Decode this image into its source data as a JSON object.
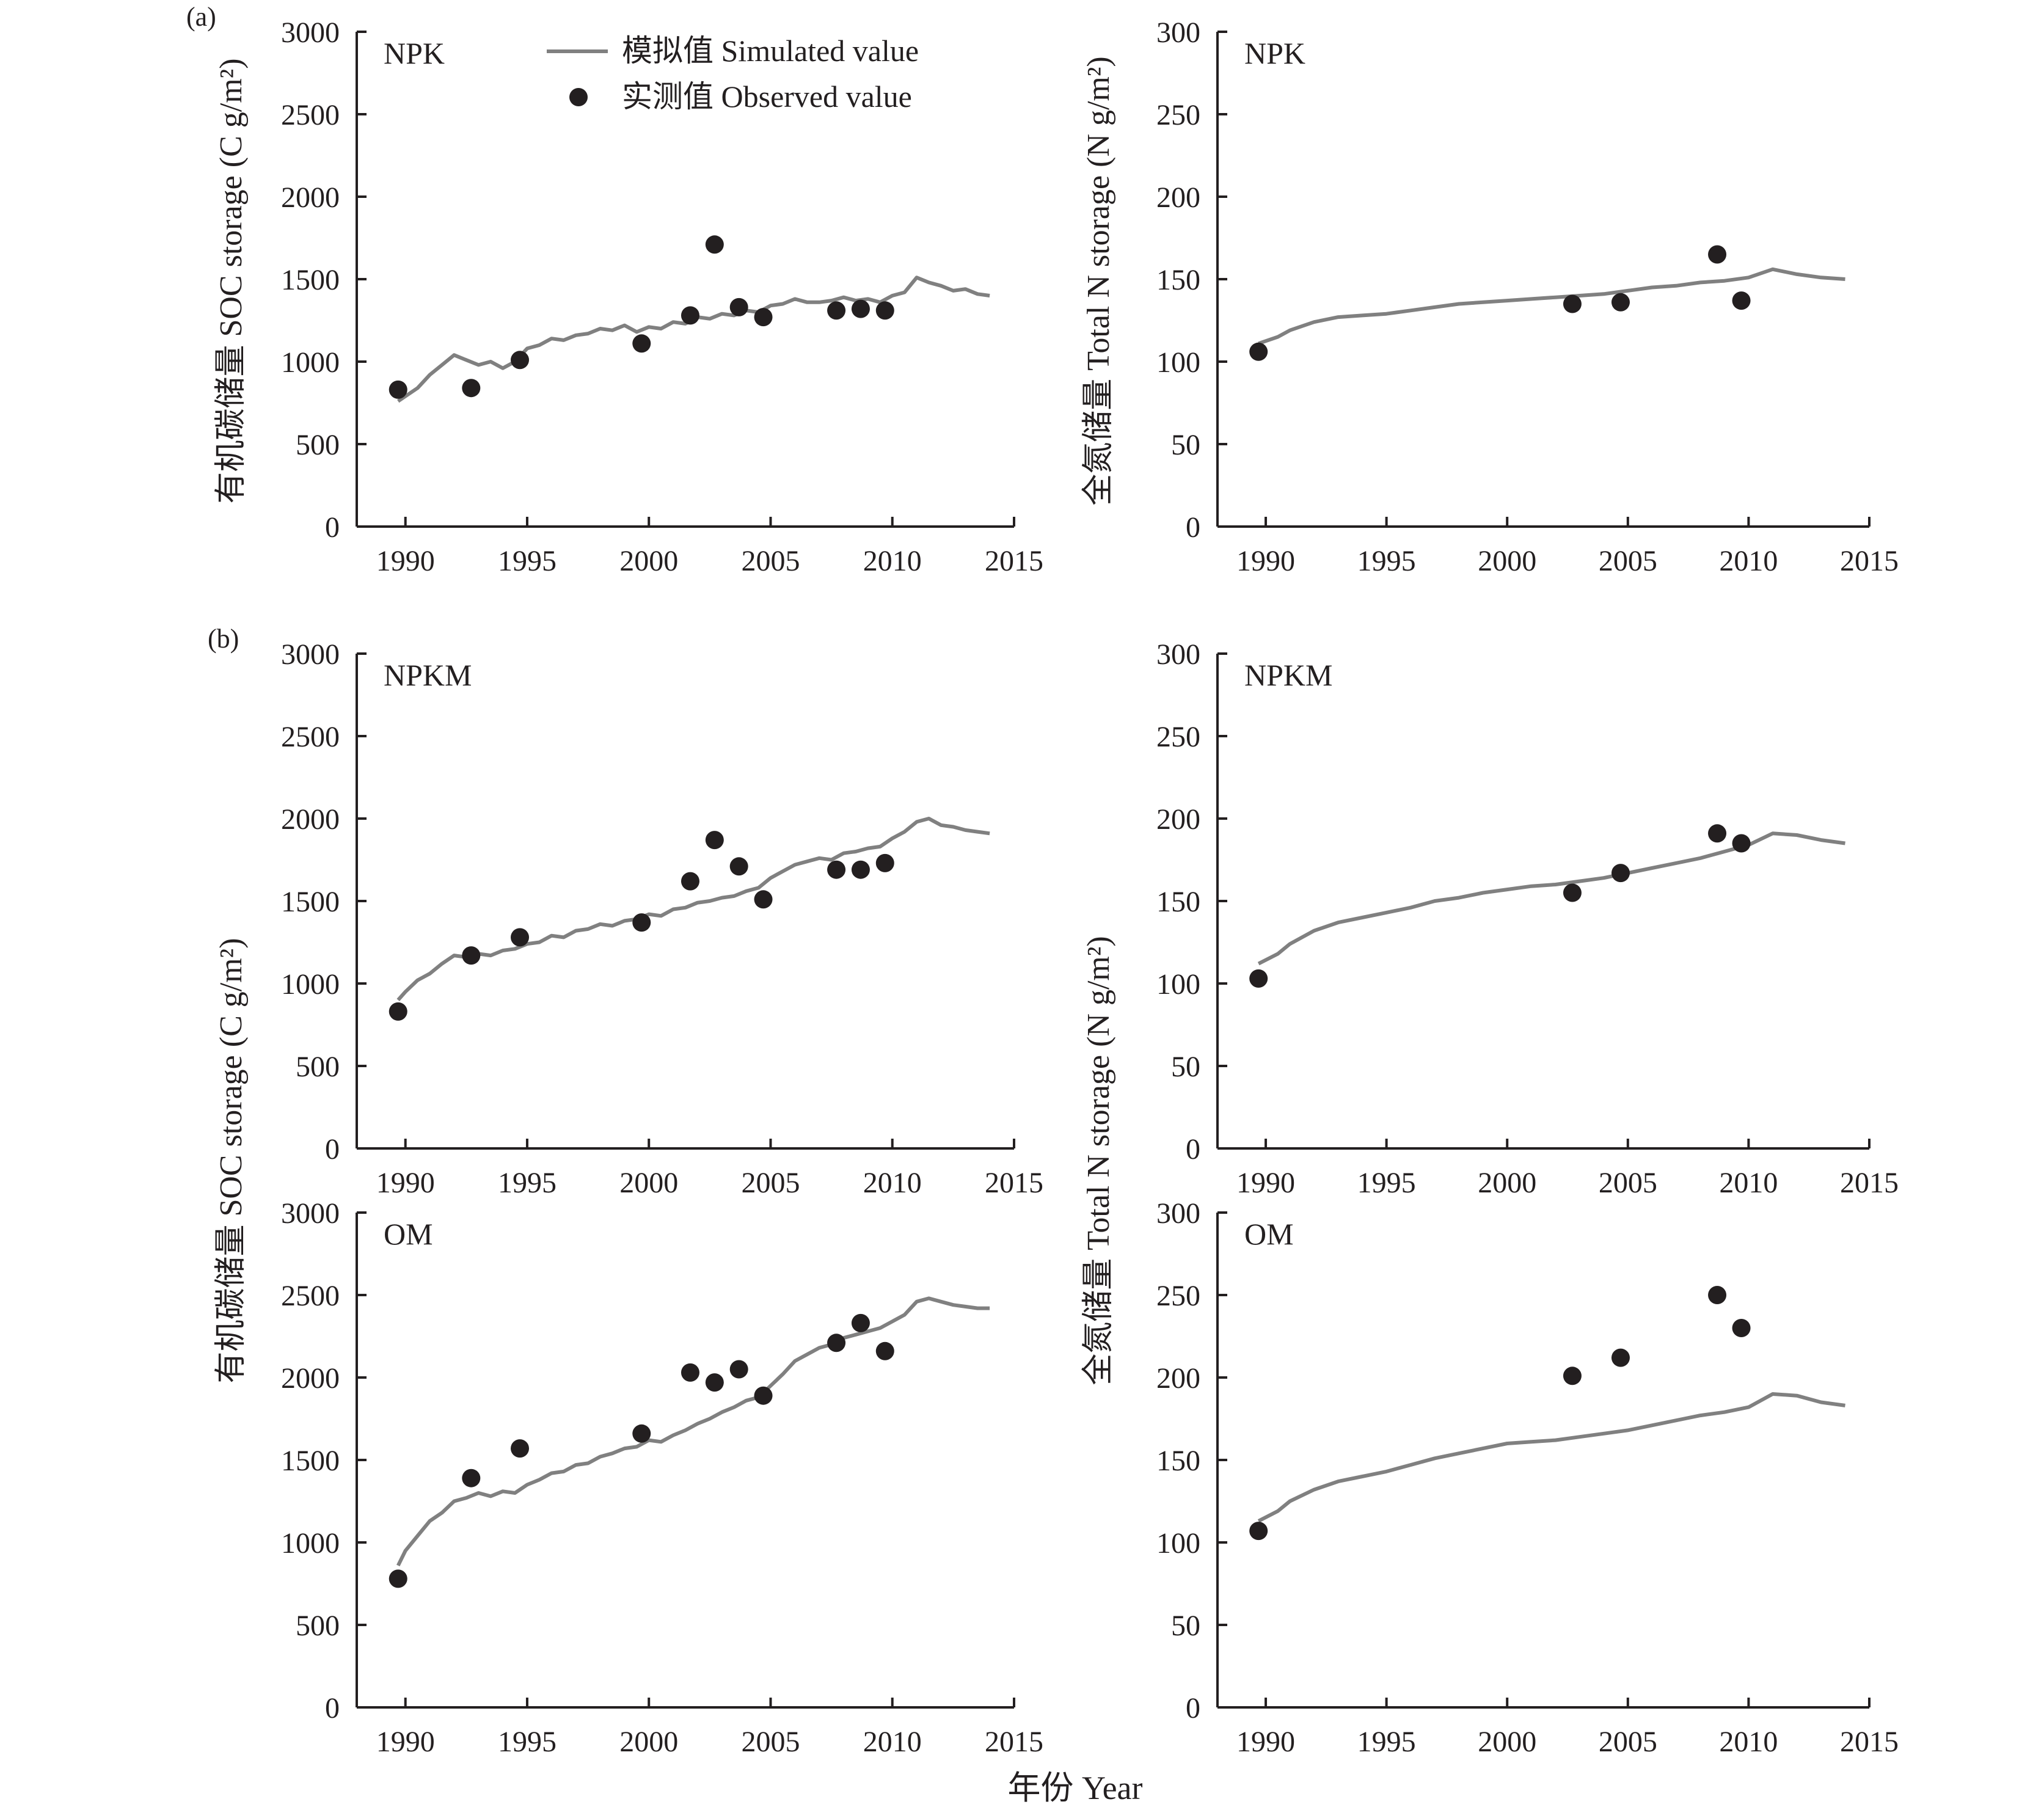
{
  "figure": {
    "panel_tags": [
      "(a)",
      "(b)"
    ],
    "xlabel": "年份 Year",
    "ylabel_soc_top": "有机碳储量 SOC storage (C g/m²)",
    "ylabel_soc_bottom": "有机碳储量 SOC storage (C g/m²)",
    "ylabel_n_top": "全氮储量 Total N storage (N g/m²)",
    "ylabel_n_bottom": "全氮储量 Total N storage (N g/m²)",
    "legend": {
      "simulated": "模拟值 Simulated value",
      "observed": "实测值 Observed value"
    },
    "colors": {
      "line": "#808080",
      "marker": "#231f20",
      "axis": "#231f20"
    }
  },
  "chart_data": [
    {
      "id": "soc_npk",
      "panel": "(a)",
      "label": "NPK",
      "type": "line+scatter",
      "ylabel": "有机碳储量 SOC storage (C g/m²)",
      "xlim": [
        1988,
        2015
      ],
      "xticks": [
        1990,
        1995,
        2000,
        2005,
        2010,
        2015
      ],
      "ylim": [
        0,
        3000
      ],
      "yticks": [
        0,
        500,
        1000,
        1500,
        2000,
        2500,
        3000
      ],
      "simulated": {
        "name": "模拟值 Simulated value",
        "x": [
          1989.7,
          1990.5,
          1991,
          1991.5,
          1992,
          1992.5,
          1993,
          1993.5,
          1994,
          1994.5,
          1995,
          1995.5,
          1996,
          1996.5,
          1997,
          1997.5,
          1998,
          1998.5,
          1999,
          1999.5,
          2000,
          2000.5,
          2001,
          2001.5,
          2002,
          2002.5,
          2003,
          2003.5,
          2004,
          2004.5,
          2005,
          2005.5,
          2006,
          2006.5,
          2007,
          2007.5,
          2008,
          2008.5,
          2009,
          2009.5,
          2010,
          2010.5,
          2011,
          2011.5,
          2012,
          2012.5,
          2013,
          2013.5,
          2014
        ],
        "y": [
          760,
          840,
          920,
          980,
          1040,
          1010,
          980,
          1000,
          960,
          1000,
          1080,
          1100,
          1140,
          1130,
          1160,
          1170,
          1200,
          1190,
          1220,
          1180,
          1210,
          1200,
          1240,
          1230,
          1270,
          1260,
          1290,
          1280,
          1310,
          1300,
          1340,
          1350,
          1380,
          1360,
          1360,
          1370,
          1390,
          1370,
          1380,
          1360,
          1400,
          1420,
          1510,
          1480,
          1460,
          1430,
          1440,
          1410,
          1400
        ]
      },
      "observed": {
        "name": "实测值 Observed value",
        "x": [
          1989.7,
          1992.7,
          1994.7,
          1999.7,
          2001.7,
          2002.7,
          2003.7,
          2004.7,
          2007.7,
          2008.7,
          2009.7
        ],
        "y": [
          830,
          840,
          1010,
          1110,
          1280,
          1710,
          1330,
          1270,
          1310,
          1320,
          1310
        ]
      }
    },
    {
      "id": "n_npk",
      "panel": "(a)",
      "label": "NPK",
      "type": "line+scatter",
      "ylabel": "全氮储量 Total N storage (N g/m²)",
      "xlim": [
        1988,
        2015
      ],
      "xticks": [
        1990,
        1995,
        2000,
        2005,
        2010,
        2015
      ],
      "ylim": [
        0,
        300
      ],
      "yticks": [
        0,
        50,
        100,
        150,
        200,
        250,
        300
      ],
      "simulated": {
        "name": "模拟值 Simulated value",
        "x": [
          1989.7,
          1990.5,
          1991,
          1992,
          1993,
          1994,
          1995,
          1996,
          1997,
          1998,
          1999,
          2000,
          2001,
          2002,
          2003,
          2004,
          2005,
          2006,
          2007,
          2008,
          2009,
          2010,
          2011,
          2012,
          2013,
          2014
        ],
        "y": [
          111,
          115,
          119,
          124,
          127,
          128,
          129,
          131,
          133,
          135,
          136,
          137,
          138,
          139,
          140,
          141,
          143,
          145,
          146,
          148,
          149,
          151,
          156,
          153,
          151,
          150
        ]
      },
      "observed": {
        "name": "实测值 Observed value",
        "x": [
          1989.7,
          2002.7,
          2004.7,
          2008.7,
          2009.7
        ],
        "y": [
          106,
          135,
          136,
          165,
          137
        ]
      }
    },
    {
      "id": "soc_npkm",
      "panel": "(b)",
      "label": "NPKM",
      "type": "line+scatter",
      "ylabel": "有机碳储量 SOC storage (C g/m²)",
      "xlim": [
        1988,
        2015
      ],
      "xticks": [
        1990,
        1995,
        2000,
        2005,
        2010,
        2015
      ],
      "ylim": [
        0,
        3000
      ],
      "yticks": [
        0,
        500,
        1000,
        1500,
        2000,
        2500,
        3000
      ],
      "simulated": {
        "name": "模拟值 Simulated value",
        "x": [
          1989.7,
          1990,
          1990.5,
          1991,
          1991.5,
          1992,
          1992.5,
          1993,
          1993.5,
          1994,
          1994.5,
          1995,
          1995.5,
          1996,
          1996.5,
          1997,
          1997.5,
          1998,
          1998.5,
          1999,
          1999.5,
          2000,
          2000.5,
          2001,
          2001.5,
          2002,
          2002.5,
          2003,
          2003.5,
          2004,
          2004.5,
          2005,
          2005.5,
          2006,
          2006.5,
          2007,
          2007.5,
          2008,
          2008.5,
          2009,
          2009.5,
          2010,
          2010.5,
          2011,
          2011.5,
          2012,
          2012.5,
          2013,
          2013.5,
          2014
        ],
        "y": [
          900,
          950,
          1020,
          1060,
          1120,
          1170,
          1160,
          1180,
          1170,
          1200,
          1210,
          1240,
          1250,
          1290,
          1280,
          1320,
          1330,
          1360,
          1350,
          1380,
          1390,
          1420,
          1410,
          1450,
          1460,
          1490,
          1500,
          1520,
          1530,
          1560,
          1580,
          1640,
          1680,
          1720,
          1740,
          1760,
          1750,
          1790,
          1800,
          1820,
          1830,
          1880,
          1920,
          1980,
          2000,
          1960,
          1950,
          1930,
          1920,
          1910
        ]
      },
      "observed": {
        "name": "实测值 Observed value",
        "x": [
          1989.7,
          1992.7,
          1994.7,
          1999.7,
          2001.7,
          2002.7,
          2003.7,
          2004.7,
          2007.7,
          2008.7,
          2009.7
        ],
        "y": [
          830,
          1170,
          1280,
          1370,
          1620,
          1870,
          1710,
          1510,
          1690,
          1690,
          1730
        ]
      }
    },
    {
      "id": "n_npkm",
      "panel": "(b)",
      "label": "NPKM",
      "type": "line+scatter",
      "ylabel": "全氮储量 Total N storage (N g/m²)",
      "xlim": [
        1988,
        2015
      ],
      "xticks": [
        1990,
        1995,
        2000,
        2005,
        2010,
        2015
      ],
      "ylim": [
        0,
        300
      ],
      "yticks": [
        0,
        50,
        100,
        150,
        200,
        250,
        300
      ],
      "simulated": {
        "name": "模拟值 Simulated value",
        "x": [
          1989.7,
          1990.5,
          1991,
          1992,
          1993,
          1994,
          1995,
          1996,
          1997,
          1998,
          1999,
          2000,
          2001,
          2002,
          2003,
          2004,
          2005,
          2006,
          2007,
          2008,
          2009,
          2010,
          2011,
          2012,
          2013,
          2014
        ],
        "y": [
          112,
          118,
          124,
          132,
          137,
          140,
          143,
          146,
          150,
          152,
          155,
          157,
          159,
          160,
          162,
          164,
          167,
          170,
          173,
          176,
          180,
          184,
          191,
          190,
          187,
          185
        ]
      },
      "observed": {
        "name": "实测值 Observed value",
        "x": [
          1989.7,
          2002.7,
          2004.7,
          2008.7,
          2009.7
        ],
        "y": [
          103,
          155,
          167,
          191,
          185
        ]
      }
    },
    {
      "id": "soc_om",
      "panel": "(b)",
      "label": "OM",
      "type": "line+scatter",
      "ylabel": "有机碳储量 SOC storage (C g/m²)",
      "xlim": [
        1988,
        2015
      ],
      "xticks": [
        1990,
        1995,
        2000,
        2005,
        2010,
        2015
      ],
      "ylim": [
        0,
        3000
      ],
      "yticks": [
        0,
        500,
        1000,
        1500,
        2000,
        2500,
        3000
      ],
      "simulated": {
        "name": "模拟值 Simulated value",
        "x": [
          1989.7,
          1990,
          1990.5,
          1991,
          1991.5,
          1992,
          1992.5,
          1993,
          1993.5,
          1994,
          1994.5,
          1995,
          1995.5,
          1996,
          1996.5,
          1997,
          1997.5,
          1998,
          1998.5,
          1999,
          1999.5,
          2000,
          2000.5,
          2001,
          2001.5,
          2002,
          2002.5,
          2003,
          2003.5,
          2004,
          2004.5,
          2005,
          2005.5,
          2006,
          2006.5,
          2007,
          2007.5,
          2008,
          2008.5,
          2009,
          2009.5,
          2010,
          2010.5,
          2011,
          2011.5,
          2012,
          2012.5,
          2013,
          2013.5,
          2014
        ],
        "y": [
          860,
          950,
          1040,
          1130,
          1180,
          1250,
          1270,
          1300,
          1280,
          1310,
          1300,
          1350,
          1380,
          1420,
          1430,
          1470,
          1480,
          1520,
          1540,
          1570,
          1580,
          1620,
          1610,
          1650,
          1680,
          1720,
          1750,
          1790,
          1820,
          1860,
          1880,
          1950,
          2020,
          2100,
          2140,
          2180,
          2200,
          2240,
          2260,
          2280,
          2300,
          2340,
          2380,
          2460,
          2480,
          2460,
          2440,
          2430,
          2420,
          2420
        ]
      },
      "observed": {
        "name": "实测值 Observed value",
        "x": [
          1989.7,
          1992.7,
          1994.7,
          1999.7,
          2001.7,
          2002.7,
          2003.7,
          2004.7,
          2007.7,
          2008.7,
          2009.7
        ],
        "y": [
          780,
          1390,
          1570,
          1660,
          2030,
          1970,
          2050,
          1890,
          2210,
          2330,
          2160
        ]
      }
    },
    {
      "id": "n_om",
      "panel": "(b)",
      "label": "OM",
      "type": "line+scatter",
      "ylabel": "全氮储量 Total N storage (N g/m²)",
      "xlim": [
        1988,
        2015
      ],
      "xticks": [
        1990,
        1995,
        2000,
        2005,
        2010,
        2015
      ],
      "ylim": [
        0,
        300
      ],
      "yticks": [
        0,
        50,
        100,
        150,
        200,
        250,
        300
      ],
      "simulated": {
        "name": "模拟值 Simulated value",
        "x": [
          1989.7,
          1990.5,
          1991,
          1992,
          1993,
          1994,
          1995,
          1996,
          1997,
          1998,
          1999,
          2000,
          2001,
          2002,
          2003,
          2004,
          2005,
          2006,
          2007,
          2008,
          2009,
          2010,
          2011,
          2012,
          2013,
          2014
        ],
        "y": [
          113,
          119,
          125,
          132,
          137,
          140,
          143,
          147,
          151,
          154,
          157,
          160,
          161,
          162,
          164,
          166,
          168,
          171,
          174,
          177,
          179,
          182,
          190,
          189,
          185,
          183
        ]
      },
      "observed": {
        "name": "实测值 Observed value",
        "x": [
          1989.7,
          2002.7,
          2004.7,
          2008.7,
          2009.7
        ],
        "y": [
          107,
          201,
          212,
          250,
          230
        ]
      }
    }
  ]
}
